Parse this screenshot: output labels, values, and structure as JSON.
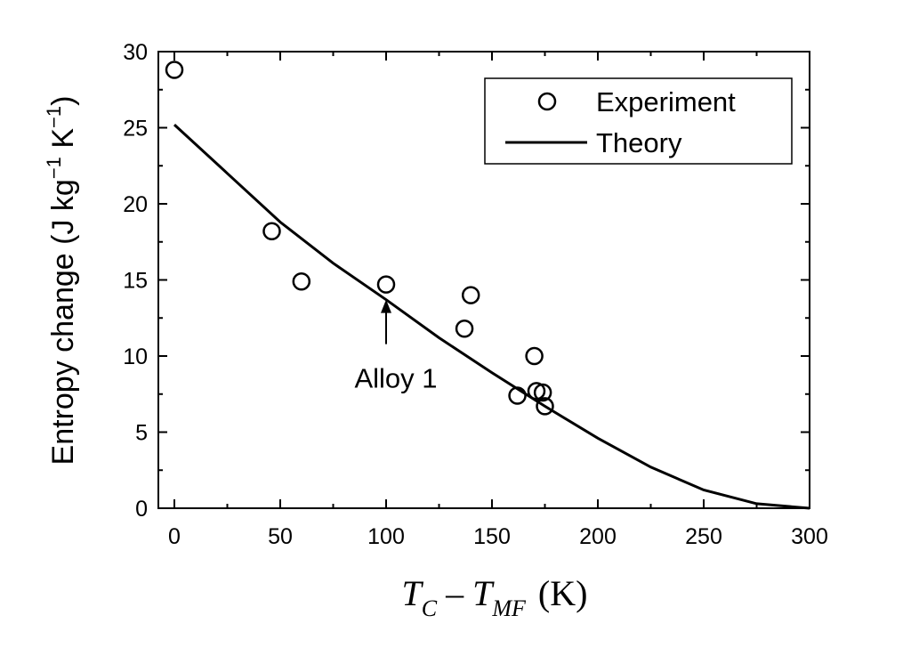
{
  "chart_data": {
    "type": "scatter",
    "xlabel": {
      "T": "T",
      "sub_C": "C",
      "dash": "–",
      "T2": "T",
      "sub_MF": "MF",
      "unit": "(K)"
    },
    "ylabel": {
      "main": "Entropy change (J kg",
      "sup1": "−1",
      "mid": " K",
      "sup2": "−1",
      "end": ")"
    },
    "xlim": [
      -10,
      300
    ],
    "ylim": [
      0,
      30
    ],
    "xticks": [
      0,
      50,
      100,
      150,
      200,
      250,
      300
    ],
    "yticks": [
      0,
      5,
      10,
      15,
      20,
      25,
      30
    ],
    "grid": false,
    "legend_position": "top-right",
    "series": [
      {
        "name": "Experiment",
        "kind": "markers",
        "marker": "open-circle",
        "x": [
          0,
          46,
          60,
          100,
          137,
          140,
          162,
          170,
          171,
          174,
          175
        ],
        "y": [
          28.8,
          18.2,
          14.9,
          14.7,
          11.8,
          14.0,
          7.4,
          10.0,
          7.7,
          7.6,
          6.7
        ]
      },
      {
        "name": "Theory",
        "kind": "line",
        "x": [
          0,
          25,
          50,
          75,
          100,
          125,
          150,
          175,
          200,
          225,
          250,
          275,
          300
        ],
        "y": [
          25.2,
          22.0,
          18.8,
          16.1,
          13.7,
          11.2,
          8.9,
          6.7,
          4.6,
          2.7,
          1.2,
          0.3,
          0.0
        ]
      }
    ],
    "annotations": [
      {
        "text": "Alloy 1",
        "points_to": {
          "x": 100,
          "y": 14.7
        }
      }
    ]
  }
}
